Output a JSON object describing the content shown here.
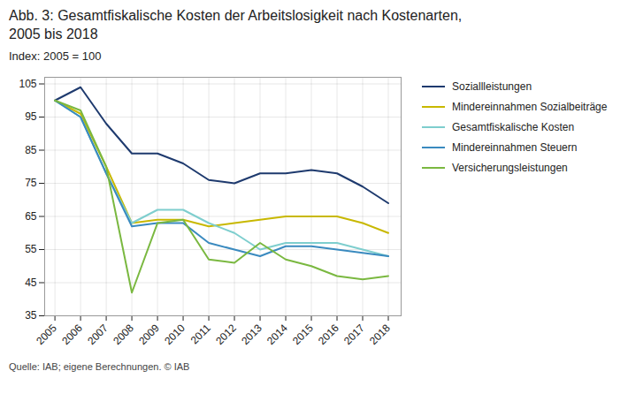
{
  "chart_data": {
    "type": "line",
    "title": "Abb. 3: Gesamtfiskalische Kosten der Arbeitslosigkeit nach Kostenarten,\n2005 bis 2018",
    "subtitle": "Index: 2005 = 100",
    "source": "Quelle: IAB; eigene Berechnungen. © IAB",
    "x": [
      2005,
      2006,
      2007,
      2008,
      2009,
      2010,
      2011,
      2012,
      2013,
      2014,
      2015,
      2016,
      2017,
      2018
    ],
    "series": [
      {
        "name": "Soziallleistungen",
        "color": "#1e3a6e",
        "values": [
          100,
          104,
          93,
          84,
          84,
          81,
          76,
          75,
          78,
          78,
          79,
          78,
          74,
          69
        ]
      },
      {
        "name": "Mindereinnahmen Sozialbeiträge",
        "color": "#c8b800",
        "values": [
          100,
          96,
          80,
          63,
          64,
          64,
          62,
          63,
          64,
          65,
          65,
          65,
          63,
          60
        ]
      },
      {
        "name": "Gesamtfiskalische Kosten",
        "color": "#7ecece",
        "values": [
          100,
          95,
          78,
          63,
          67,
          67,
          63,
          60,
          55,
          57,
          57,
          57,
          55,
          53
        ]
      },
      {
        "name": "Mindereinnahmen Steuern",
        "color": "#3a8abf",
        "values": [
          100,
          95,
          78,
          62,
          63,
          63,
          57,
          55,
          53,
          56,
          56,
          55,
          54,
          53
        ]
      },
      {
        "name": "Versicherungsleistungen",
        "color": "#7ab840",
        "values": [
          100,
          97,
          80,
          42,
          63,
          64,
          52,
          51,
          57,
          52,
          50,
          47,
          46,
          47
        ]
      }
    ],
    "xlim": [
      2004.6,
      2018.5
    ],
    "xticks": [
      2005,
      2006,
      2007,
      2008,
      2009,
      2010,
      2011,
      2012,
      2013,
      2014,
      2015,
      2016,
      2017,
      2018
    ],
    "ylim": [
      35,
      107
    ],
    "yticks": [
      35,
      45,
      55,
      65,
      75,
      85,
      95,
      105
    ],
    "grid": true,
    "legend": "right"
  }
}
